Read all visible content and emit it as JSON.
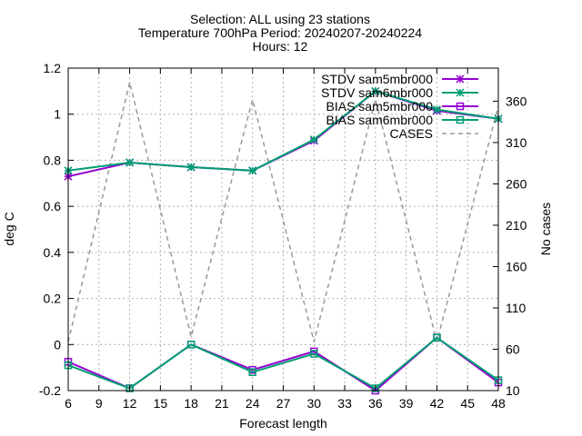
{
  "chart_data": {
    "type": "line",
    "title_lines": [
      "Selection: ALL using    23 stations",
      "Temperature 700hPa   Period: 20240207-20240224",
      "Hours: 12"
    ],
    "xlabel": "Forecast length",
    "ylabel": "deg C",
    "y2label": "No cases",
    "xlim": [
      6,
      48
    ],
    "ylim": [
      -0.2,
      1.2
    ],
    "y2lim": [
      10,
      400
    ],
    "x_ticks": [
      6,
      9,
      12,
      15,
      18,
      21,
      24,
      27,
      30,
      33,
      36,
      39,
      42,
      45,
      48
    ],
    "y_ticks": [
      -0.2,
      0,
      0.2,
      0.4,
      0.6,
      0.8,
      1,
      1.2
    ],
    "y_tick_labels": [
      "-0.2",
      "0",
      "0.2",
      "0.4",
      "0.6",
      "0.8",
      "1",
      "1.2"
    ],
    "y2_ticks": [
      10,
      60,
      110,
      160,
      210,
      260,
      310,
      360
    ],
    "grid": true,
    "legend_position": "top-right",
    "x": [
      6,
      12,
      18,
      24,
      30,
      36,
      42,
      48
    ],
    "series": [
      {
        "name": "STDV sam5mbr000",
        "axis": "y",
        "color": "#9400d3",
        "marker": "star",
        "values": [
          0.73,
          0.79,
          0.77,
          0.755,
          0.885,
          1.1,
          1.015,
          0.98
        ]
      },
      {
        "name": "STDV sam6mbr000",
        "axis": "y",
        "color": "#009e73",
        "marker": "star",
        "values": [
          0.755,
          0.79,
          0.77,
          0.755,
          0.89,
          1.1,
          1.02,
          0.98
        ]
      },
      {
        "name": "BIAS sam5mbr000",
        "axis": "y",
        "color": "#9400d3",
        "marker": "square",
        "values": [
          -0.075,
          -0.19,
          0.0,
          -0.11,
          -0.03,
          -0.2,
          0.03,
          -0.165
        ]
      },
      {
        "name": "BIAS sam6mbr000",
        "axis": "y",
        "color": "#009e73",
        "marker": "square",
        "values": [
          -0.09,
          -0.19,
          0.0,
          -0.12,
          -0.04,
          -0.19,
          0.03,
          -0.155
        ]
      },
      {
        "name": "CASES",
        "axis": "y2",
        "color": "#999999",
        "marker": "none",
        "dashed": true,
        "values": [
          69,
          383,
          75,
          362,
          69,
          362,
          69,
          354
        ]
      }
    ]
  }
}
